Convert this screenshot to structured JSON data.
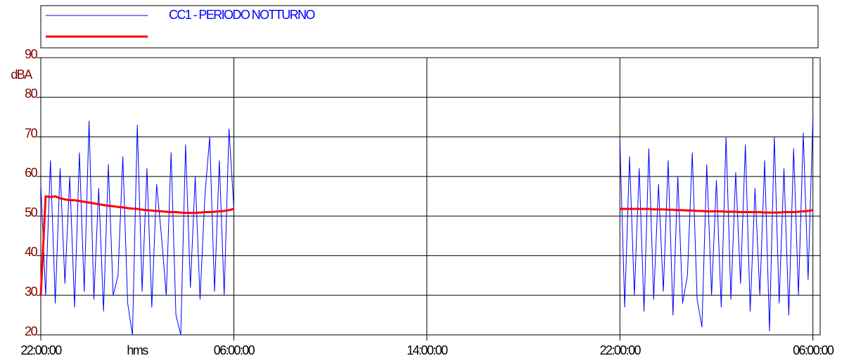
{
  "chart_data": {
    "type": "line",
    "x_label": "hms",
    "y_label": "dBA",
    "x": [
      0,
      0.2,
      0.4,
      0.6,
      0.8,
      1,
      1.2,
      1.4,
      1.6,
      1.8,
      2,
      2.2,
      2.4,
      2.6,
      2.8,
      3,
      3.2,
      3.4,
      3.6,
      3.8,
      4,
      4.2,
      4.4,
      4.6,
      4.8,
      5,
      5.2,
      5.4,
      5.6,
      5.8,
      6,
      6.2,
      6.4,
      6.6,
      6.8,
      7,
      7.2,
      7.4,
      7.6,
      7.8,
      8,
      16,
      24,
      24.2,
      24.4,
      24.6,
      24.8,
      25,
      25.2,
      25.4,
      25.6,
      25.8,
      26,
      26.2,
      26.4,
      26.6,
      26.8,
      27,
      27.2,
      27.4,
      27.6,
      27.8,
      28,
      28.2,
      28.4,
      28.6,
      28.8,
      29,
      29.2,
      29.4,
      29.6,
      29.8,
      30,
      30.2,
      30.4,
      30.6,
      30.8,
      31,
      31.2,
      31.4,
      31.6,
      31.8,
      32
    ],
    "series": [
      {
        "name": "CC1 - PERIODO NOTTURNO",
        "color": "#0000ff",
        "linewidth": 1,
        "values": [
          58,
          30,
          64,
          28,
          62,
          33,
          60,
          27,
          66,
          31,
          74,
          29,
          57,
          26,
          63,
          30,
          35,
          65,
          28,
          20,
          73,
          31,
          62,
          27,
          58,
          45,
          30,
          66,
          25,
          20,
          68,
          32,
          60,
          29,
          55,
          70,
          31,
          64,
          30,
          72,
          52,
          null,
          69,
          27,
          65,
          30,
          62,
          26,
          67,
          29,
          58,
          31,
          64,
          25,
          60,
          28,
          35,
          66,
          29,
          22,
          63,
          30,
          59,
          27,
          70,
          29,
          61,
          33,
          68,
          26,
          57,
          30,
          64,
          21,
          70,
          28,
          62,
          25,
          67,
          30,
          71,
          34,
          75
        ]
      },
      {
        "color": "#ff0000",
        "linewidth": 3,
        "values": [
          30,
          55,
          54.8,
          55,
          54.5,
          54.2,
          54,
          54,
          53.8,
          53.6,
          53.4,
          53.2,
          53,
          52.8,
          52.6,
          52.5,
          52.3,
          52.2,
          52,
          51.9,
          51.8,
          51.6,
          51.5,
          51.4,
          51.3,
          51.2,
          51.1,
          51,
          51,
          50.9,
          50.8,
          50.8,
          50.8,
          50.9,
          51,
          51,
          51.1,
          51.2,
          51.3,
          51.5,
          51.8,
          null,
          51.8,
          51.8,
          51.8,
          51.8,
          51.8,
          51.8,
          51.8,
          51.7,
          51.7,
          51.7,
          51.6,
          51.6,
          51.5,
          51.5,
          51.4,
          51.4,
          51.3,
          51.3,
          51.2,
          51.2,
          51.2,
          51.2,
          51.1,
          51.1,
          51.1,
          51,
          51,
          51,
          51,
          51,
          50.9,
          50.9,
          50.9,
          50.9,
          51,
          51,
          51,
          51.1,
          51.2,
          51.3,
          51.5
        ]
      }
    ],
    "xlim": [
      0,
      32.3
    ],
    "xticks": [
      {
        "value": 0,
        "label": "22:00:00"
      },
      {
        "value": 8,
        "label": "06:00:00"
      },
      {
        "value": 16,
        "label": "14:00:00"
      },
      {
        "value": 24,
        "label": "22:00:00"
      },
      {
        "value": 32,
        "label": "06:00:00"
      }
    ],
    "ylim": [
      20,
      90
    ],
    "yticks": [
      20,
      30,
      40,
      50,
      60,
      70,
      80,
      90
    ],
    "grid": true
  }
}
